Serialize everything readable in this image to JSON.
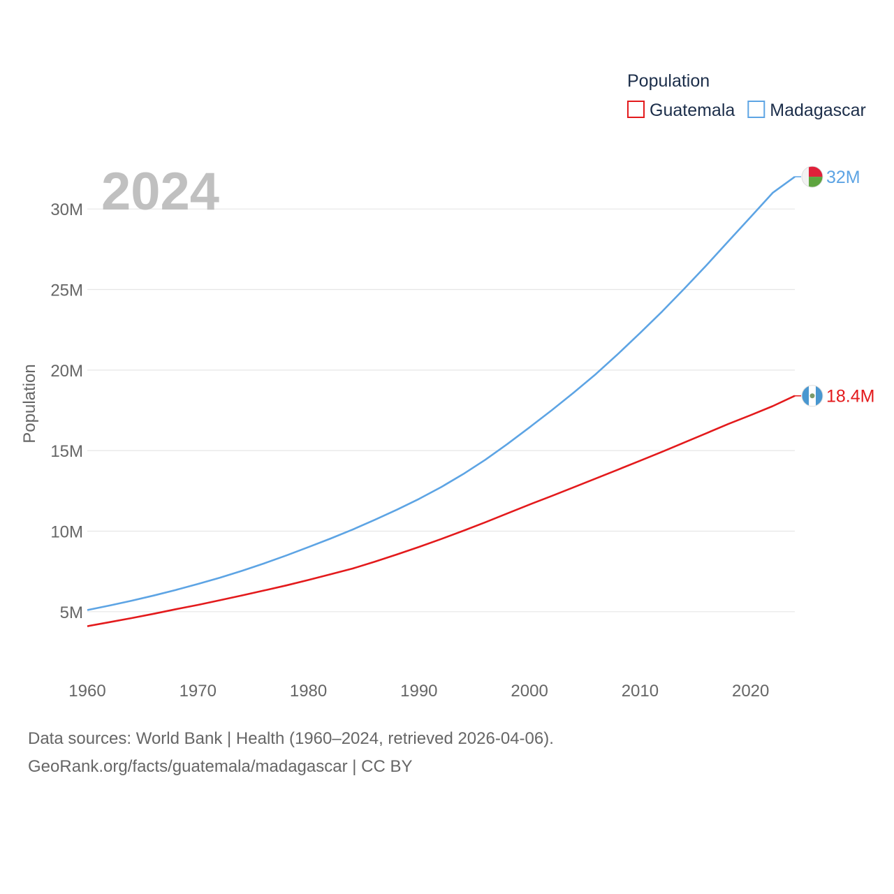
{
  "chart_data": {
    "type": "line",
    "title": "Population",
    "year_label": "2024",
    "xlabel": "",
    "ylabel": "Population",
    "xlim": [
      1960,
      2024
    ],
    "ylim": [
      2000000,
      33000000
    ],
    "x_ticks": [
      1960,
      1970,
      1980,
      1990,
      2000,
      2010,
      2020
    ],
    "y_ticks": [
      {
        "value": 5000000,
        "label": "5M"
      },
      {
        "value": 10000000,
        "label": "10M"
      },
      {
        "value": 15000000,
        "label": "15M"
      },
      {
        "value": 20000000,
        "label": "20M"
      },
      {
        "value": 25000000,
        "label": "25M"
      },
      {
        "value": 30000000,
        "label": "30M"
      }
    ],
    "legend_position": "top-right",
    "x": [
      1960,
      1962,
      1964,
      1966,
      1968,
      1970,
      1972,
      1974,
      1976,
      1978,
      1980,
      1982,
      1984,
      1986,
      1988,
      1990,
      1992,
      1994,
      1996,
      1998,
      2000,
      2002,
      2004,
      2006,
      2008,
      2010,
      2012,
      2014,
      2016,
      2018,
      2020,
      2022,
      2024
    ],
    "series": [
      {
        "name": "Guatemala",
        "color": "#e31a1c",
        "end_label": "18.4M",
        "flag": "guatemala-flag",
        "values": [
          4100000,
          4350000,
          4600000,
          4870000,
          5150000,
          5420000,
          5710000,
          6010000,
          6320000,
          6630000,
          6970000,
          7320000,
          7680000,
          8100000,
          8550000,
          9020000,
          9510000,
          10020000,
          10550000,
          11100000,
          11650000,
          12180000,
          12720000,
          13270000,
          13820000,
          14370000,
          14930000,
          15500000,
          16080000,
          16660000,
          17200000,
          17760000,
          18400000
        ]
      },
      {
        "name": "Madagascar",
        "color": "#5da4e4",
        "end_label": "32M",
        "flag": "madagascar-flag",
        "values": [
          5100000,
          5380000,
          5680000,
          6000000,
          6350000,
          6720000,
          7110000,
          7540000,
          8000000,
          8490000,
          9010000,
          9540000,
          10100000,
          10700000,
          11330000,
          12000000,
          12730000,
          13540000,
          14430000,
          15410000,
          16440000,
          17500000,
          18600000,
          19750000,
          21000000,
          22300000,
          23640000,
          25050000,
          26500000,
          28000000,
          29500000,
          31000000,
          32000000
        ]
      }
    ]
  },
  "footer": {
    "sources": "Data sources: World Bank | Health (1960–2024, retrieved 2026-04-06).",
    "url": "GeoRank.org/facts/guatemala/madagascar | CC BY"
  }
}
